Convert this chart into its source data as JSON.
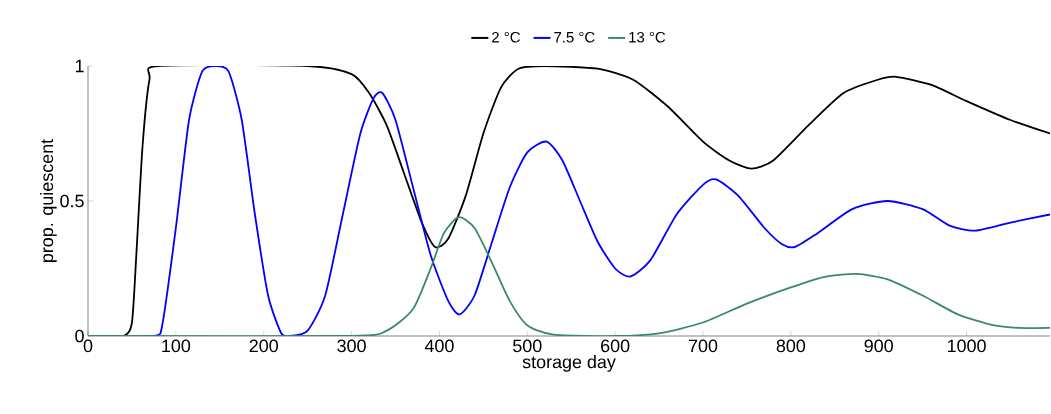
{
  "chart_data": {
    "type": "line",
    "xlabel": "storage day",
    "ylabel": "prop. quiescent",
    "legend": "top",
    "xlim": [
      0,
      1095
    ],
    "ylim": [
      0,
      1
    ],
    "xticks": [
      0,
      100,
      200,
      300,
      400,
      500,
      600,
      700,
      800,
      900,
      1000
    ],
    "yticks": [
      0,
      0.5,
      1
    ],
    "series": [
      {
        "name": "2 °C",
        "color": "#000000",
        "x": [
          0,
          40,
          50,
          55,
          62,
          70,
          80,
          250,
          300,
          320,
          340,
          360,
          380,
          395,
          410,
          430,
          450,
          470,
          490,
          520,
          580,
          620,
          660,
          700,
          730,
          755,
          780,
          820,
          860,
          900,
          920,
          960,
          1000,
          1050,
          1095
        ],
        "values": [
          0,
          0,
          0.05,
          0.3,
          0.7,
          0.95,
          1,
          1,
          0.97,
          0.9,
          0.78,
          0.6,
          0.42,
          0.33,
          0.36,
          0.52,
          0.75,
          0.92,
          0.99,
          1,
          0.99,
          0.95,
          0.85,
          0.72,
          0.65,
          0.62,
          0.65,
          0.78,
          0.9,
          0.95,
          0.96,
          0.93,
          0.87,
          0.8,
          0.75
        ]
      },
      {
        "name": "7.5 °C",
        "color": "#0000ff",
        "x": [
          0,
          75,
          85,
          100,
          115,
          130,
          145,
          160,
          175,
          190,
          205,
          220,
          230,
          250,
          270,
          290,
          310,
          325,
          335,
          350,
          370,
          390,
          410,
          423,
          440,
          460,
          480,
          500,
          522,
          540,
          560,
          580,
          600,
          617,
          640,
          670,
          700,
          715,
          740,
          770,
          790,
          805,
          830,
          870,
          910,
          950,
          980,
          1010,
          1050,
          1095
        ],
        "values": [
          0,
          0,
          0.05,
          0.4,
          0.8,
          0.98,
          1,
          0.98,
          0.8,
          0.45,
          0.15,
          0.01,
          0,
          0.02,
          0.15,
          0.45,
          0.75,
          0.88,
          0.9,
          0.8,
          0.55,
          0.3,
          0.13,
          0.08,
          0.15,
          0.35,
          0.55,
          0.68,
          0.72,
          0.65,
          0.5,
          0.35,
          0.25,
          0.22,
          0.28,
          0.45,
          0.56,
          0.58,
          0.52,
          0.4,
          0.34,
          0.33,
          0.38,
          0.47,
          0.5,
          0.47,
          0.41,
          0.39,
          0.42,
          0.45
        ]
      },
      {
        "name": "13 °C",
        "color": "#3a8a6a",
        "x": [
          0,
          300,
          340,
          370,
          390,
          405,
          422,
          440,
          460,
          480,
          500,
          530,
          600,
          650,
          700,
          750,
          800,
          840,
          875,
          910,
          950,
          990,
          1030,
          1060,
          1095
        ],
        "values": [
          0,
          0,
          0.02,
          0.1,
          0.25,
          0.38,
          0.44,
          0.4,
          0.27,
          0.13,
          0.04,
          0.005,
          0,
          0.01,
          0.05,
          0.12,
          0.18,
          0.22,
          0.23,
          0.21,
          0.15,
          0.08,
          0.04,
          0.03,
          0.03
        ]
      }
    ]
  }
}
